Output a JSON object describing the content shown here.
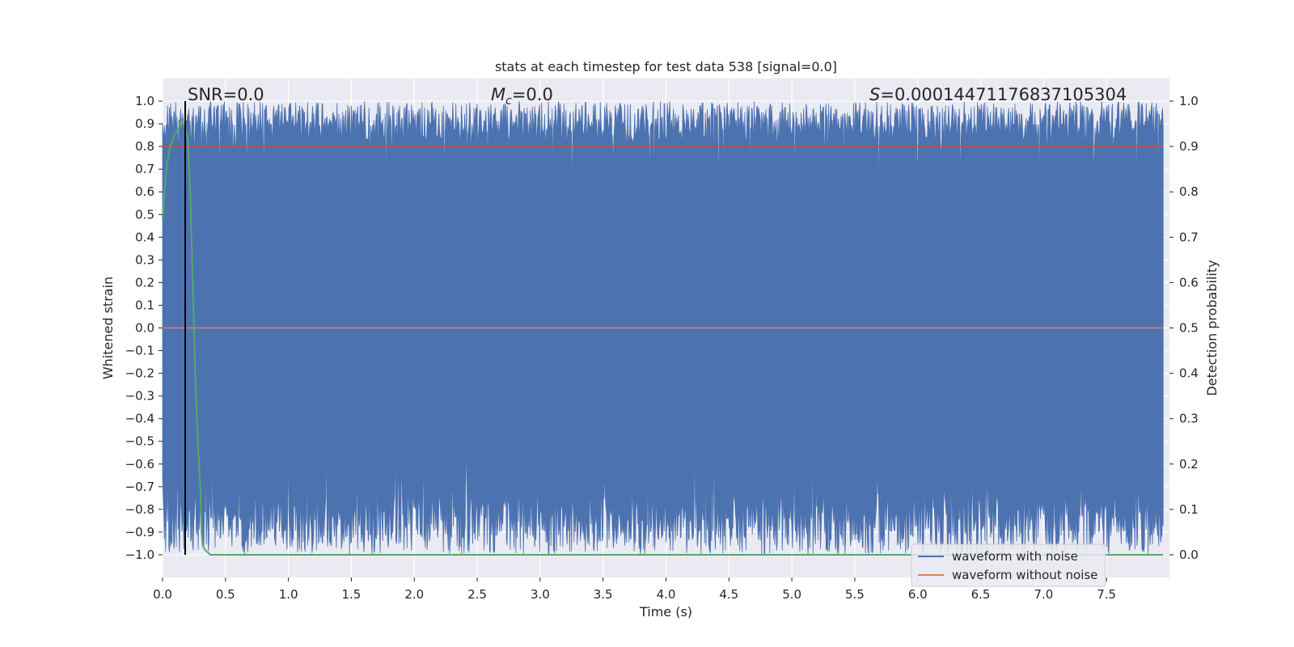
{
  "chart_data": {
    "type": "line",
    "title": "stats at each timestep for test data 538 [signal=0.0]",
    "xlabel": "Time (s)",
    "ylabel": "Whitened strain",
    "y2label": "Detection probability",
    "xlim": [
      0.0,
      8.0
    ],
    "ylim": [
      -1.1,
      1.1
    ],
    "y2lim": [
      -0.05,
      1.05
    ],
    "xticks": [
      "0.0",
      "0.5",
      "1.0",
      "1.5",
      "2.0",
      "2.5",
      "3.0",
      "3.5",
      "4.0",
      "4.5",
      "5.0",
      "5.5",
      "6.0",
      "6.5",
      "7.0",
      "7.5"
    ],
    "yticks": [
      "1.0",
      "0.9",
      "0.8",
      "0.7",
      "0.6",
      "0.5",
      "0.4",
      "0.3",
      "0.2",
      "0.1",
      "0.0",
      "−0.1",
      "−0.2",
      "−0.3",
      "−0.4",
      "−0.5",
      "−0.6",
      "−0.7",
      "−0.8",
      "−0.9",
      "−1.0"
    ],
    "y2ticks": [
      "1.0",
      "0.9",
      "0.8",
      "0.7",
      "0.6",
      "0.5",
      "0.4",
      "0.3",
      "0.2",
      "0.1",
      "0.0"
    ],
    "grid": true,
    "legend_placement": "lower-right",
    "annotations": {
      "snr": "SNR=0.0",
      "mc_symbol": "M",
      "mc_sub": "c",
      "mc_value": "=0.0",
      "s_symbol": "S",
      "s_value": "=0.0001447117683710530​4"
    },
    "colors": {
      "noise": "#4c72b0",
      "clean": "#dd8452",
      "threshold": "#c44e52",
      "probability": "#55a868",
      "marker": "#000000",
      "background": "#eaeaf2"
    },
    "series": [
      {
        "name": "waveform with noise",
        "axis": "left",
        "description_range": [
          -1.0,
          1.0
        ],
        "noise_envelope": {
          "upper_min": 0.82,
          "upper_max": 1.0,
          "lower_max": -0.55,
          "lower_min": -1.0
        }
      },
      {
        "name": "waveform without noise",
        "axis": "left",
        "x": [
          0.0,
          7.95
        ],
        "y": [
          0.0,
          0.0
        ]
      },
      {
        "axis": "right",
        "x": [
          0.0,
          7.95
        ],
        "y": [
          0.9,
          0.9
        ]
      },
      {
        "axis": "right",
        "x": [
          0.0,
          0.03,
          0.06,
          0.1,
          0.13,
          0.15,
          0.18,
          0.2,
          0.22,
          0.24,
          0.26,
          0.28,
          0.3,
          0.31,
          0.32,
          0.34,
          0.38,
          0.5,
          1.0,
          2.0,
          3.0,
          4.0,
          5.0,
          6.0,
          7.0,
          7.95
        ],
        "y": [
          0.74,
          0.85,
          0.9,
          0.93,
          0.94,
          0.96,
          0.94,
          0.92,
          0.8,
          0.6,
          0.4,
          0.25,
          0.15,
          0.05,
          0.02,
          0.01,
          0.0,
          0.0,
          0.0,
          0.0,
          0.0,
          0.0,
          0.0,
          0.0,
          0.0,
          0.0
        ]
      }
    ],
    "marker_line_x": 0.18
  }
}
